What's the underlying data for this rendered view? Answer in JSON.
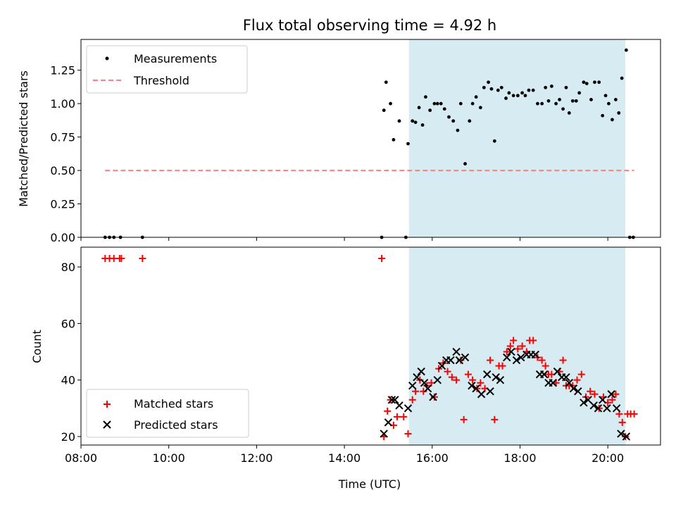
{
  "chart_data": [
    {
      "type": "scatter",
      "title": "Flux total observing time = 4.92 h",
      "ylabel": "Matched/Predicted stars",
      "xlabel": "",
      "xlim": [
        8.0,
        21.2
      ],
      "ylim": [
        0.0,
        1.48
      ],
      "yticks": [
        0.0,
        0.25,
        0.5,
        0.75,
        1.0,
        1.25
      ],
      "ytick_labels": [
        "0.00",
        "0.25",
        "0.50",
        "0.75",
        "1.00",
        "1.25"
      ],
      "xticks": [
        8,
        10,
        12,
        14,
        16,
        18,
        20
      ],
      "observing_window": [
        15.47,
        20.4
      ],
      "window_color": "#add8e6",
      "legend": {
        "position": "upper-left",
        "entries": [
          "Measurements",
          "Threshold"
        ]
      },
      "series": [
        {
          "name": "Measurements",
          "marker": "dot",
          "color": "#000000",
          "points": [
            [
              8.55,
              0
            ],
            [
              8.65,
              0
            ],
            [
              8.75,
              0
            ],
            [
              8.9,
              0
            ],
            [
              9.4,
              0
            ],
            [
              14.85,
              0
            ],
            [
              15.4,
              0
            ],
            [
              14.9,
              0.95
            ],
            [
              14.95,
              1.16
            ],
            [
              15.05,
              1.0
            ],
            [
              15.12,
              0.73
            ],
            [
              15.25,
              0.87
            ],
            [
              15.45,
              0.7
            ],
            [
              15.55,
              0.87
            ],
            [
              15.62,
              0.86
            ],
            [
              15.7,
              0.97
            ],
            [
              15.78,
              0.84
            ],
            [
              15.85,
              1.05
            ],
            [
              15.95,
              0.95
            ],
            [
              16.05,
              1.0
            ],
            [
              16.12,
              1.0
            ],
            [
              16.2,
              1.0
            ],
            [
              16.28,
              0.96
            ],
            [
              16.38,
              0.9
            ],
            [
              16.48,
              0.87
            ],
            [
              16.58,
              0.8
            ],
            [
              16.65,
              1.0
            ],
            [
              16.75,
              0.55
            ],
            [
              16.85,
              0.87
            ],
            [
              16.92,
              1.0
            ],
            [
              17.0,
              1.05
            ],
            [
              17.1,
              0.97
            ],
            [
              17.18,
              1.12
            ],
            [
              17.28,
              1.16
            ],
            [
              17.35,
              1.11
            ],
            [
              17.42,
              0.72
            ],
            [
              17.5,
              1.1
            ],
            [
              17.58,
              1.12
            ],
            [
              17.68,
              1.04
            ],
            [
              17.75,
              1.08
            ],
            [
              17.85,
              1.06
            ],
            [
              17.95,
              1.06
            ],
            [
              18.05,
              1.08
            ],
            [
              18.12,
              1.06
            ],
            [
              18.2,
              1.1
            ],
            [
              18.3,
              1.1
            ],
            [
              18.4,
              1.0
            ],
            [
              18.5,
              1.0
            ],
            [
              18.58,
              1.12
            ],
            [
              18.65,
              1.02
            ],
            [
              18.72,
              1.13
            ],
            [
              18.82,
              1.0
            ],
            [
              18.9,
              1.03
            ],
            [
              18.98,
              0.96
            ],
            [
              19.05,
              1.12
            ],
            [
              19.12,
              0.93
            ],
            [
              19.2,
              1.02
            ],
            [
              19.28,
              1.02
            ],
            [
              19.35,
              1.08
            ],
            [
              19.45,
              1.16
            ],
            [
              19.52,
              1.15
            ],
            [
              19.62,
              1.03
            ],
            [
              19.7,
              1.16
            ],
            [
              19.8,
              1.16
            ],
            [
              19.88,
              0.91
            ],
            [
              19.95,
              1.06
            ],
            [
              20.02,
              1.0
            ],
            [
              20.1,
              0.88
            ],
            [
              20.18,
              1.03
            ],
            [
              20.25,
              0.93
            ],
            [
              20.32,
              1.19
            ],
            [
              20.42,
              1.4
            ],
            [
              20.5,
              0
            ],
            [
              20.58,
              0
            ]
          ]
        },
        {
          "name": "Threshold",
          "marker": "dashed-line",
          "color": "#ff7f7f",
          "points": [
            [
              8.55,
              0.5
            ],
            [
              20.6,
              0.5
            ]
          ]
        }
      ]
    },
    {
      "type": "scatter",
      "title": "",
      "ylabel": "Count",
      "xlabel": "Time (UTC)",
      "xlim": [
        8.0,
        21.2
      ],
      "ylim": [
        17.0,
        87.0
      ],
      "yticks": [
        20,
        40,
        60,
        80
      ],
      "ytick_labels": [
        "20",
        "40",
        "60",
        "80"
      ],
      "xticks": [
        8,
        10,
        12,
        14,
        16,
        18,
        20
      ],
      "xtick_labels": [
        "08:00",
        "10:00",
        "12:00",
        "14:00",
        "16:00",
        "18:00",
        "20:00"
      ],
      "observing_window": [
        15.47,
        20.4
      ],
      "window_color": "#add8e6",
      "legend": {
        "position": "lower-left",
        "entries": [
          "Matched stars",
          "Predicted stars"
        ]
      },
      "series": [
        {
          "name": "Matched stars",
          "marker": "plus",
          "color": "#ff0000",
          "points": [
            [
              8.55,
              83
            ],
            [
              8.65,
              83
            ],
            [
              8.75,
              83
            ],
            [
              8.88,
              83
            ],
            [
              8.92,
              83
            ],
            [
              9.4,
              83
            ],
            [
              14.85,
              83
            ],
            [
              14.9,
              20
            ],
            [
              14.98,
              29
            ],
            [
              15.05,
              33
            ],
            [
              15.12,
              24
            ],
            [
              15.2,
              27
            ],
            [
              15.35,
              27
            ],
            [
              15.45,
              21
            ],
            [
              15.55,
              33
            ],
            [
              15.62,
              36
            ],
            [
              15.72,
              40
            ],
            [
              15.8,
              36
            ],
            [
              15.88,
              38
            ],
            [
              15.98,
              39
            ],
            [
              16.05,
              34
            ],
            [
              16.15,
              44
            ],
            [
              16.25,
              46
            ],
            [
              16.35,
              43
            ],
            [
              16.45,
              41
            ],
            [
              16.55,
              40
            ],
            [
              16.65,
              47
            ],
            [
              16.72,
              26
            ],
            [
              16.82,
              42
            ],
            [
              16.92,
              40
            ],
            [
              17.02,
              37
            ],
            [
              17.1,
              39
            ],
            [
              17.2,
              37
            ],
            [
              17.32,
              47
            ],
            [
              17.42,
              26
            ],
            [
              17.52,
              45
            ],
            [
              17.6,
              45
            ],
            [
              17.7,
              50
            ],
            [
              17.78,
              52
            ],
            [
              17.85,
              54
            ],
            [
              17.95,
              51
            ],
            [
              18.05,
              52
            ],
            [
              18.15,
              50
            ],
            [
              18.22,
              54
            ],
            [
              18.3,
              54
            ],
            [
              18.4,
              48
            ],
            [
              18.5,
              47
            ],
            [
              18.58,
              45
            ],
            [
              18.65,
              42
            ],
            [
              18.72,
              42
            ],
            [
              18.82,
              39
            ],
            [
              18.9,
              43
            ],
            [
              18.98,
              47
            ],
            [
              19.05,
              38
            ],
            [
              19.12,
              38
            ],
            [
              19.2,
              38
            ],
            [
              19.3,
              40
            ],
            [
              19.4,
              42
            ],
            [
              19.5,
              34
            ],
            [
              19.6,
              36
            ],
            [
              19.7,
              35
            ],
            [
              19.8,
              30
            ],
            [
              19.9,
              34
            ],
            [
              20.0,
              32
            ],
            [
              20.1,
              33
            ],
            [
              20.18,
              35
            ],
            [
              20.26,
              28
            ],
            [
              20.33,
              25
            ],
            [
              20.4,
              20
            ],
            [
              20.45,
              28
            ],
            [
              20.52,
              28
            ],
            [
              20.6,
              28
            ]
          ]
        },
        {
          "name": "Predicted stars",
          "marker": "x",
          "color": "#000000",
          "points": [
            [
              14.9,
              21
            ],
            [
              15.0,
              25
            ],
            [
              15.08,
              33
            ],
            [
              15.15,
              33
            ],
            [
              15.25,
              31
            ],
            [
              15.45,
              30
            ],
            [
              15.55,
              38
            ],
            [
              15.65,
              41
            ],
            [
              15.75,
              43
            ],
            [
              15.82,
              39
            ],
            [
              15.9,
              37
            ],
            [
              16.02,
              34
            ],
            [
              16.12,
              40
            ],
            [
              16.22,
              45
            ],
            [
              16.32,
              47
            ],
            [
              16.42,
              47
            ],
            [
              16.55,
              50
            ],
            [
              16.62,
              47
            ],
            [
              16.75,
              48
            ],
            [
              16.9,
              38
            ],
            [
              17.0,
              37
            ],
            [
              17.12,
              35
            ],
            [
              17.25,
              42
            ],
            [
              17.32,
              36
            ],
            [
              17.45,
              41
            ],
            [
              17.55,
              40
            ],
            [
              17.7,
              48
            ],
            [
              17.8,
              50
            ],
            [
              17.92,
              47
            ],
            [
              18.02,
              48
            ],
            [
              18.15,
              49
            ],
            [
              18.25,
              49
            ],
            [
              18.35,
              49
            ],
            [
              18.45,
              42
            ],
            [
              18.55,
              42
            ],
            [
              18.65,
              39
            ],
            [
              18.75,
              39
            ],
            [
              18.85,
              43
            ],
            [
              18.95,
              41
            ],
            [
              19.05,
              41
            ],
            [
              19.12,
              39
            ],
            [
              19.22,
              37
            ],
            [
              19.32,
              36
            ],
            [
              19.45,
              32
            ],
            [
              19.55,
              33
            ],
            [
              19.68,
              31
            ],
            [
              19.78,
              30
            ],
            [
              19.88,
              33
            ],
            [
              19.98,
              30
            ],
            [
              20.08,
              35
            ],
            [
              20.2,
              30
            ],
            [
              20.3,
              21
            ],
            [
              20.42,
              20
            ]
          ]
        }
      ]
    }
  ]
}
